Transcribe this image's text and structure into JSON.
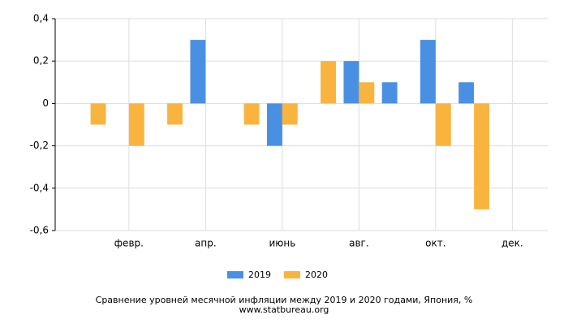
{
  "chart_data": {
    "type": "bar",
    "title": "Сравнение уровней месячной инфляции между 2019 и 2020 годами, Япония, %",
    "subtitle": "www.statbureau.org",
    "categories": [
      null,
      "февр.",
      null,
      "апр.",
      null,
      "июнь",
      null,
      "авг.",
      null,
      "окт.",
      null,
      "дек."
    ],
    "series": [
      {
        "name": "2019",
        "color": "#4a90e2",
        "values": [
          0,
          0,
          0,
          0.3,
          0,
          -0.2,
          0,
          0.2,
          0.1,
          0.3,
          0.1,
          0
        ]
      },
      {
        "name": "2020",
        "color": "#f9b43f",
        "values": [
          -0.1,
          -0.2,
          -0.1,
          0,
          -0.1,
          -0.1,
          0.2,
          0.1,
          0,
          -0.2,
          -0.5,
          null
        ]
      }
    ],
    "ylim": [
      -0.6,
      0.4
    ],
    "yticks": [
      {
        "value": -0.6,
        "label": "-0,6"
      },
      {
        "value": -0.4,
        "label": "-0,4"
      },
      {
        "value": -0.2,
        "label": "-0,2"
      },
      0,
      {
        "value": 0.2,
        "label": "0,2"
      },
      {
        "value": 0.4,
        "label": "0,4"
      }
    ],
    "grid": true
  }
}
